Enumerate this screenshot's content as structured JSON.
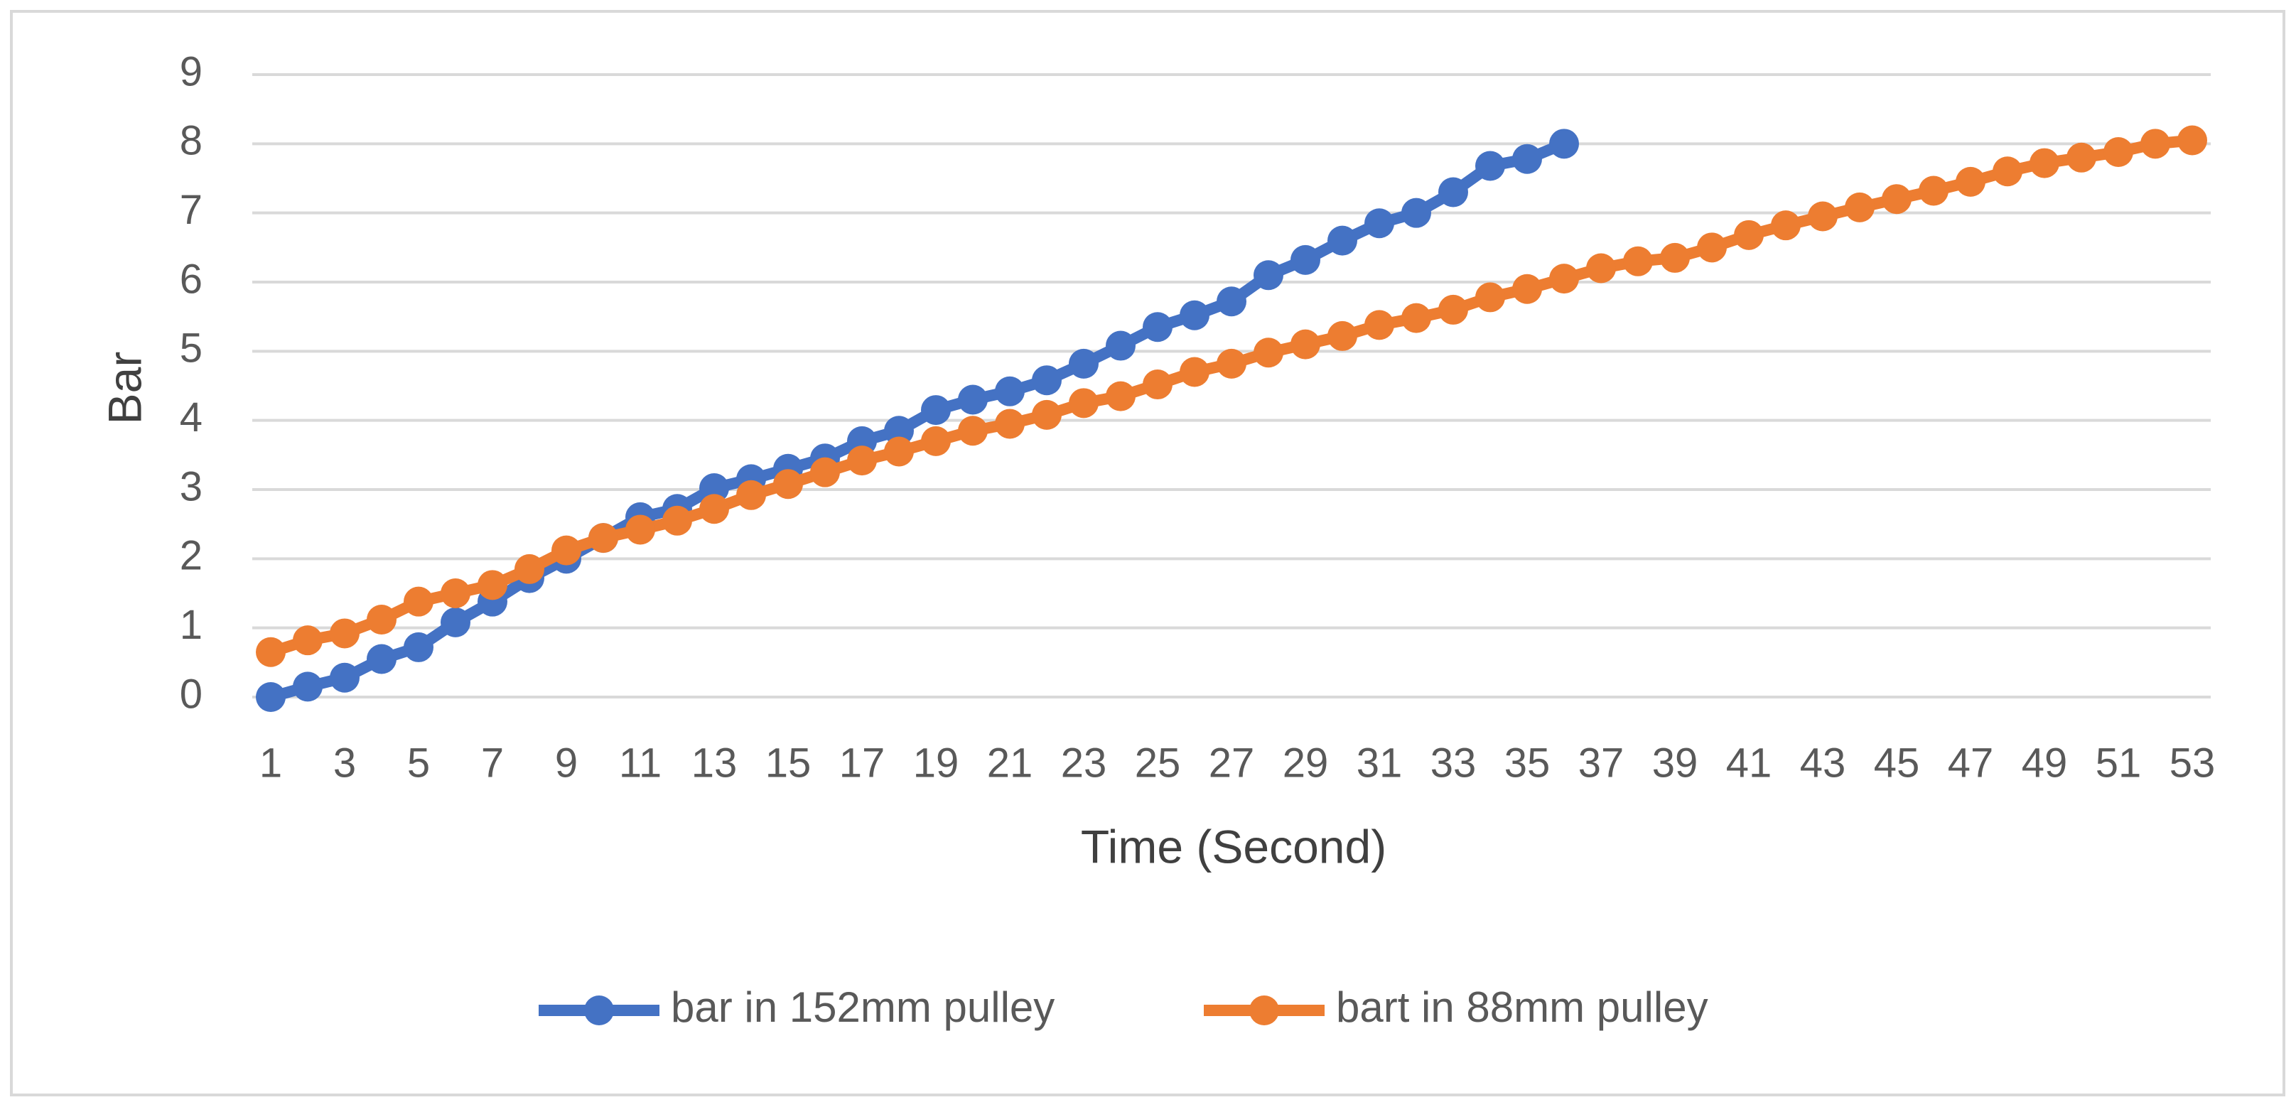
{
  "chart_data": {
    "type": "line",
    "x_label": "Time (Second)",
    "y_label": "Bar",
    "categories": [
      1,
      null,
      3,
      null,
      5,
      null,
      7,
      null,
      9,
      null,
      11,
      null,
      13,
      null,
      15,
      null,
      17,
      null,
      19,
      null,
      21,
      null,
      23,
      null,
      25,
      null,
      27,
      null,
      29,
      null,
      31,
      null,
      33,
      null,
      35,
      null,
      37,
      null,
      39,
      null,
      41,
      null,
      43,
      null,
      45,
      null,
      47,
      null,
      49,
      null,
      51,
      null,
      53
    ],
    "series": [
      {
        "name": "bar in 152mm pulley",
        "color": "#4472c4",
        "values": [
          0,
          0.15,
          0.28,
          0.55,
          0.72,
          1.08,
          1.38,
          1.72,
          2.0,
          2.3,
          2.6,
          2.72,
          3.02,
          3.15,
          3.3,
          3.45,
          3.7,
          3.85,
          4.15,
          4.3,
          4.42,
          4.58,
          4.82,
          5.08,
          5.35,
          5.52,
          5.72,
          6.1,
          6.32,
          6.6,
          6.85,
          7.0,
          7.3,
          7.68,
          7.78,
          8.0,
          null,
          null,
          null,
          null,
          null,
          null,
          null,
          null,
          null,
          null,
          null,
          null,
          null,
          null,
          null,
          null,
          null
        ]
      },
      {
        "name": "bart in 88mm pulley",
        "color": "#ed7d31",
        "values": [
          0.65,
          0.82,
          0.92,
          1.12,
          1.38,
          1.5,
          1.62,
          1.85,
          2.12,
          2.3,
          2.42,
          2.55,
          2.72,
          2.92,
          3.08,
          3.25,
          3.42,
          3.55,
          3.7,
          3.85,
          3.95,
          4.08,
          4.25,
          4.35,
          4.52,
          4.7,
          4.82,
          4.98,
          5.1,
          5.22,
          5.38,
          5.48,
          5.6,
          5.78,
          5.9,
          6.05,
          6.2,
          6.3,
          6.35,
          6.5,
          6.68,
          6.82,
          6.95,
          7.08,
          7.2,
          7.32,
          7.45,
          7.6,
          7.72,
          7.8,
          7.88,
          8.0,
          8.05
        ]
      }
    ],
    "ylim": [
      0,
      9
    ],
    "yticks": [
      0,
      1,
      2,
      3,
      4,
      5,
      6,
      7,
      8,
      9
    ],
    "grid": true,
    "legend": "bottom"
  }
}
